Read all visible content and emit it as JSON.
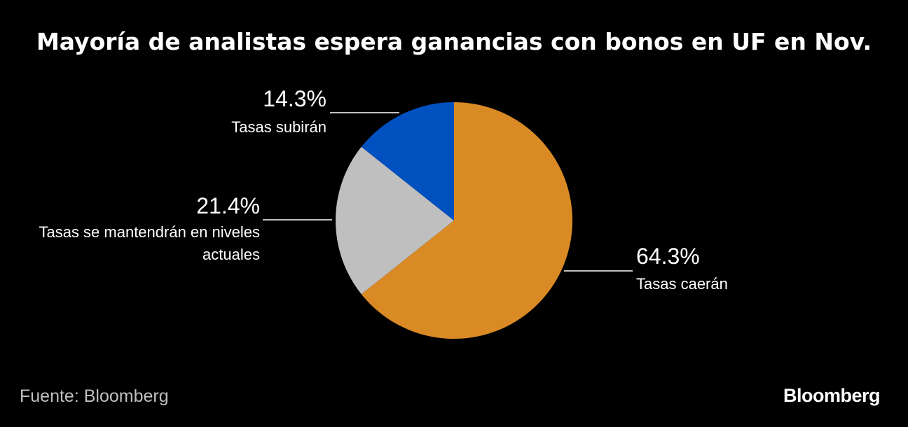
{
  "chart_data": {
    "type": "pie",
    "title": "Mayoría de analistas espera ganancias con bonos en UF en Nov.",
    "categories": [
      "Tasas caerán",
      "Tasas se mantendrán en niveles actuales",
      "Tasas subirán"
    ],
    "values": [
      64.3,
      21.4,
      14.3
    ],
    "value_labels": [
      "64.3%",
      "21.4%",
      "14.3%"
    ],
    "colors": [
      "#d98a24",
      "#bfbfbf",
      "#0050c0"
    ],
    "source": "Fuente: Bloomberg",
    "brand": "Bloomberg"
  }
}
